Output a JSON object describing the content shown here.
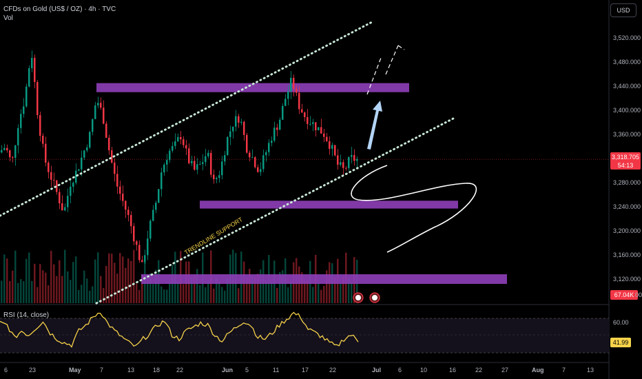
{
  "header": {
    "title": "CFDs on Gold (US$ / OZ) · 4h · TVC",
    "sub": "Vol"
  },
  "currency_button": "USD",
  "price_axis": {
    "ticks": [
      "3,520.000",
      "3,480.000",
      "3,440.000",
      "3,400.000",
      "3,360.000",
      "3,280.000",
      "3,240.000",
      "3,200.000",
      "3,160.000",
      "3,120.000"
    ],
    "tick_values": [
      3520,
      3480,
      3440,
      3400,
      3360,
      3280,
      3240,
      3200,
      3160,
      3120
    ],
    "current_price": "3,318.705",
    "countdown": "54:13",
    "current_value": 3318.705,
    "volume_value": "67.04K",
    "volume_tail": "00"
  },
  "rsi": {
    "label": "RSI (14, close)",
    "tick": "60.00",
    "value": "41.99"
  },
  "annotation": {
    "trendline_text": "TRENDLINE SUPPORT"
  },
  "time_axis": {
    "labels": [
      "6",
      "23",
      "May",
      "7",
      "13",
      "18",
      "22",
      "Jun",
      "5",
      "11",
      "17",
      "22",
      "Jul",
      "6",
      "10",
      "16",
      "22",
      "27",
      "Aug",
      "7",
      "13"
    ]
  },
  "colors": {
    "background": "#000000",
    "up": "#089981",
    "down": "#f23645",
    "zone": "#8e3fb8",
    "channel": "#c8e6d6",
    "rsi": "#f7d34a",
    "arrow": "#b3d4f5"
  },
  "chart_data": {
    "type": "candlestick",
    "symbol": "CFDs on Gold (US$ / OZ)",
    "timeframe": "4h",
    "ylim": [
      3080,
      3560
    ],
    "last_price": 3318.705,
    "zones": [
      {
        "low": 3430,
        "high": 3445
      },
      {
        "low": 3237,
        "high": 3250
      },
      {
        "low": 3112,
        "high": 3128
      }
    ],
    "price_path": [
      3330,
      3340,
      3310,
      3380,
      3420,
      3500,
      3390,
      3320,
      3290,
      3260,
      3230,
      3280,
      3300,
      3330,
      3360,
      3420,
      3390,
      3330,
      3280,
      3250,
      3220,
      3180,
      3140,
      3200,
      3240,
      3300,
      3330,
      3340,
      3360,
      3320,
      3300,
      3310,
      3330,
      3280,
      3300,
      3350,
      3380,
      3390,
      3340,
      3320,
      3300,
      3330,
      3360,
      3380,
      3420,
      3450,
      3410,
      3390,
      3380,
      3370,
      3360,
      3340,
      3310,
      3300,
      3320,
      3318
    ],
    "rsi_path": [
      60,
      58,
      45,
      52,
      48,
      55,
      62,
      50,
      44,
      40,
      38,
      52,
      58,
      66,
      72,
      60,
      52,
      46,
      40,
      36,
      44,
      50,
      58,
      62,
      48,
      44,
      52,
      56,
      60,
      58,
      48,
      42,
      50,
      56,
      62,
      58,
      46,
      44,
      50,
      58,
      64,
      70,
      66,
      54,
      50,
      46,
      40,
      36,
      44,
      48,
      42
    ]
  }
}
